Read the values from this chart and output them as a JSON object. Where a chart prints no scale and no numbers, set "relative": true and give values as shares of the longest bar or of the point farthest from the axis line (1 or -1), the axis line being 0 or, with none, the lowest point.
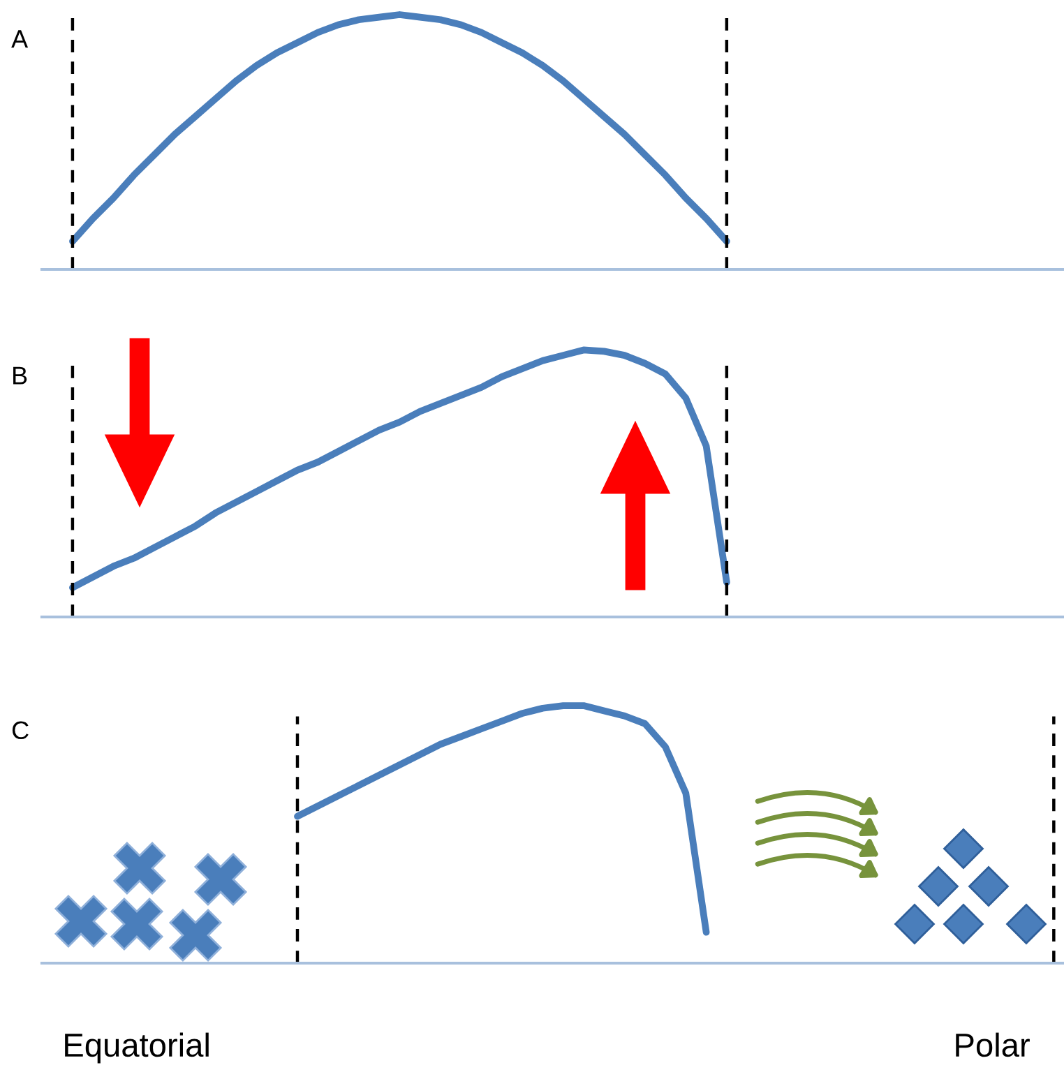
{
  "chart_data": [
    {
      "type": "line",
      "title": "A",
      "relative": true,
      "categories": [
        null,
        null,
        null,
        null,
        null,
        null,
        null,
        null,
        null,
        null,
        null,
        null,
        null,
        null,
        null,
        null,
        null,
        null,
        null,
        null,
        null,
        null,
        null,
        null,
        null,
        null,
        null,
        null,
        null,
        null,
        null,
        null,
        null,
        null,
        null,
        null,
        null,
        null,
        null,
        null,
        null,
        null,
        null,
        null,
        null,
        null,
        null,
        null,
        null,
        null
      ],
      "series": [
        {
          "color": "#4a7ebb",
          "values": [
            null,
            0.11,
            0.2,
            0.28,
            0.37,
            0.45,
            0.53,
            0.6,
            0.67,
            0.74,
            0.8,
            0.85,
            0.89,
            0.93,
            0.96,
            0.98,
            0.99,
            1.0,
            0.99,
            0.98,
            0.96,
            0.93,
            0.89,
            0.85,
            0.8,
            0.74,
            0.67,
            0.6,
            0.53,
            0.45,
            0.37,
            0.28,
            0.2,
            0.11,
            null,
            null,
            null,
            null,
            null,
            null,
            null,
            null,
            null,
            null,
            null,
            null,
            null,
            null,
            null,
            null
          ]
        }
      ]
    },
    {
      "type": "line",
      "title": "B",
      "relative": true,
      "categories": [
        null,
        null,
        null,
        null,
        null,
        null,
        null,
        null,
        null,
        null,
        null,
        null,
        null,
        null,
        null,
        null,
        null,
        null,
        null,
        null,
        null,
        null,
        null,
        null,
        null,
        null,
        null,
        null,
        null,
        null,
        null,
        null,
        null,
        null,
        null,
        null,
        null,
        null,
        null,
        null,
        null,
        null,
        null,
        null,
        null,
        null,
        null,
        null,
        null,
        null
      ],
      "series": [
        {
          "color": "#4a7ebb",
          "values": [
            null,
            0.11,
            0.15,
            0.19,
            0.22,
            0.26,
            0.3,
            0.34,
            0.39,
            0.43,
            0.47,
            0.51,
            0.55,
            0.58,
            0.62,
            0.66,
            0.7,
            0.73,
            0.77,
            0.8,
            0.83,
            0.86,
            0.9,
            0.93,
            0.96,
            0.98,
            1.0,
            0.995,
            0.98,
            0.95,
            0.91,
            0.82,
            0.64,
            0.13,
            null,
            null,
            null,
            null,
            null,
            null,
            null,
            null,
            null,
            null,
            null,
            null,
            null,
            null,
            null,
            null
          ]
        }
      ]
    },
    {
      "type": "line",
      "title": "C",
      "relative": true,
      "categories": [
        null,
        null,
        null,
        null,
        null,
        null,
        null,
        null,
        null,
        null,
        null,
        null,
        null,
        null,
        null,
        null,
        null,
        null,
        null,
        null,
        null,
        null,
        null,
        null,
        null,
        null,
        null,
        null,
        null,
        null,
        null,
        null,
        null,
        null,
        null,
        null,
        null,
        null,
        null,
        null,
        null,
        null,
        null,
        null,
        null,
        null,
        null,
        null,
        null,
        null
      ],
      "series": [
        {
          "color": "#4a7ebb",
          "values": [
            null,
            null,
            null,
            null,
            null,
            null,
            null,
            null,
            null,
            null,
            null,
            null,
            0.57,
            0.61,
            0.65,
            0.69,
            0.73,
            0.77,
            0.81,
            0.85,
            0.88,
            0.91,
            0.94,
            0.97,
            0.99,
            1.0,
            1.0,
            0.98,
            0.96,
            0.93,
            0.84,
            0.66,
            0.12,
            null,
            null,
            null,
            null,
            null,
            null,
            null,
            null,
            null,
            null,
            null,
            null,
            null,
            null,
            null,
            null,
            null
          ]
        }
      ],
      "annotations": [
        "Equatorial",
        "Polar"
      ]
    }
  ]
}
